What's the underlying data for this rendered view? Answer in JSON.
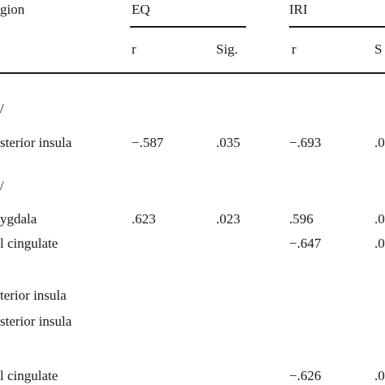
{
  "table": {
    "header": {
      "region": "gion",
      "eq": "EQ",
      "iri": "IRI",
      "r_eq": "r",
      "sig_eq": "Sig.",
      "r_iri": "r",
      "sig_iri": "S"
    },
    "rows": [
      {
        "label": "/",
        "eq_r": "",
        "eq_sig": "",
        "iri_r": "",
        "iri_sig": ""
      },
      {
        "label": "sterior insula",
        "eq_r": "−.587",
        "eq_sig": ".035",
        "iri_r": "−.693",
        "iri_sig": ".0"
      },
      {
        "label": "/",
        "eq_r": "",
        "eq_sig": "",
        "iri_r": "",
        "iri_sig": ""
      },
      {
        "label": "ygdala",
        "eq_r": ".623",
        "eq_sig": ".023",
        "iri_r": ".596",
        "iri_sig": ".0"
      },
      {
        "label": "l cingulate",
        "eq_r": "",
        "eq_sig": "",
        "iri_r": "−.647",
        "iri_sig": ".0"
      },
      {
        "label": "terior insula",
        "eq_r": "",
        "eq_sig": "",
        "iri_r": "",
        "iri_sig": ""
      },
      {
        "label": "sterior insula",
        "eq_r": "",
        "eq_sig": "",
        "iri_r": "",
        "iri_sig": ""
      },
      {
        "label": "l cingulate",
        "eq_r": "",
        "eq_sig": "",
        "iri_r": "−.626",
        "iri_sig": ".0"
      }
    ]
  }
}
